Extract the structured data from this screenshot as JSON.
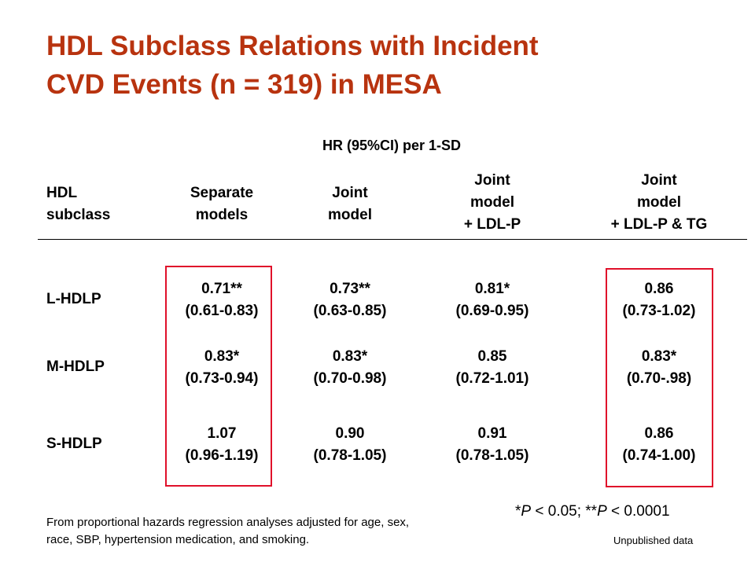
{
  "title": {
    "line1": "HDL Subclass Relations with Incident",
    "line2": "CVD Events (n = 319) in MESA"
  },
  "table": {
    "subtitle": "HR (95%CI) per 1-SD",
    "headers": [
      {
        "line1": "HDL",
        "line2": "subclass"
      },
      {
        "line1": "Separate",
        "line2": "models"
      },
      {
        "line1": "Joint",
        "line2": "model"
      },
      {
        "line1": "Joint",
        "line2": "model",
        "line3": "+ LDL-P"
      },
      {
        "line1": "Joint",
        "line2": "model",
        "line3": "+ LDL-P & TG"
      }
    ],
    "rows": [
      {
        "label": "L-HDLP",
        "cells": [
          {
            "hr": "0.71**",
            "ci": "(0.61-0.83)"
          },
          {
            "hr": "0.73**",
            "ci": "(0.63-0.85)"
          },
          {
            "hr": "0.81*",
            "ci": "(0.69-0.95)"
          },
          {
            "hr": "0.86",
            "ci": "(0.73-1.02)"
          }
        ]
      },
      {
        "label": "M-HDLP",
        "cells": [
          {
            "hr": "0.83*",
            "ci": "(0.73-0.94)"
          },
          {
            "hr": "0.83*",
            "ci": "(0.70-0.98)"
          },
          {
            "hr": "0.85",
            "ci": "(0.72-1.01)"
          },
          {
            "hr": "0.83*",
            "ci": "(0.70-.98)"
          }
        ]
      },
      {
        "label": "S-HDLP",
        "cells": [
          {
            "hr": "1.07",
            "ci": "(0.96-1.19)"
          },
          {
            "hr": "0.90",
            "ci": "(0.78-1.05)"
          },
          {
            "hr": "0.91",
            "ci": "(0.78-1.05)"
          },
          {
            "hr": "0.86",
            "ci": "(0.74-1.00)"
          }
        ]
      }
    ]
  },
  "significance": {
    "p1_star": "*",
    "p1_var": "P",
    "p1_rest": " < 0.05; **",
    "p2_var": "P",
    "p2_rest": " < 0.0001"
  },
  "footnote": {
    "line1": "From proportional hazards regression analyses adjusted for age, sex,",
    "line2": "race, SBP, hypertension medication, and smoking."
  },
  "unpublished": "Unpublished data",
  "colors": {
    "title": "#b8330f",
    "highlight_box": "#e0102a"
  }
}
